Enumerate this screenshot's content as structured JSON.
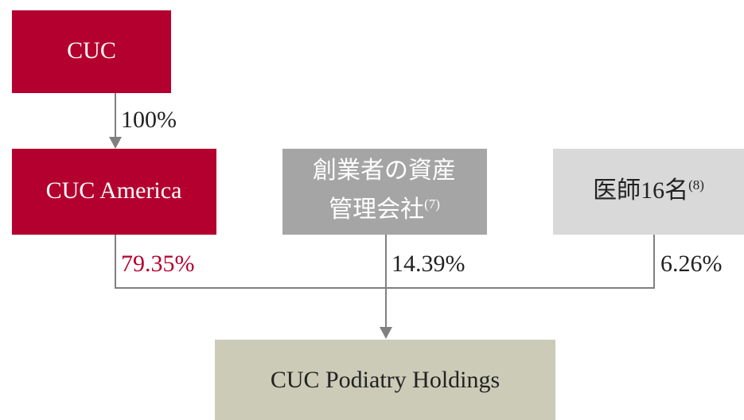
{
  "nodes": [
    {
      "label": "CUC"
    },
    {
      "label": "CUC America"
    },
    {
      "lines": [
        "創業者の資産",
        "管理会社"
      ],
      "note": "(7)"
    },
    {
      "label": "医師16名",
      "note": "(8)"
    },
    {
      "label": "CUC Podiatry Holdings"
    }
  ],
  "edges": [
    {
      "label": "100%"
    },
    {
      "label": "79.35%"
    },
    {
      "label": "14.39%"
    },
    {
      "label": "6.26%"
    }
  ]
}
